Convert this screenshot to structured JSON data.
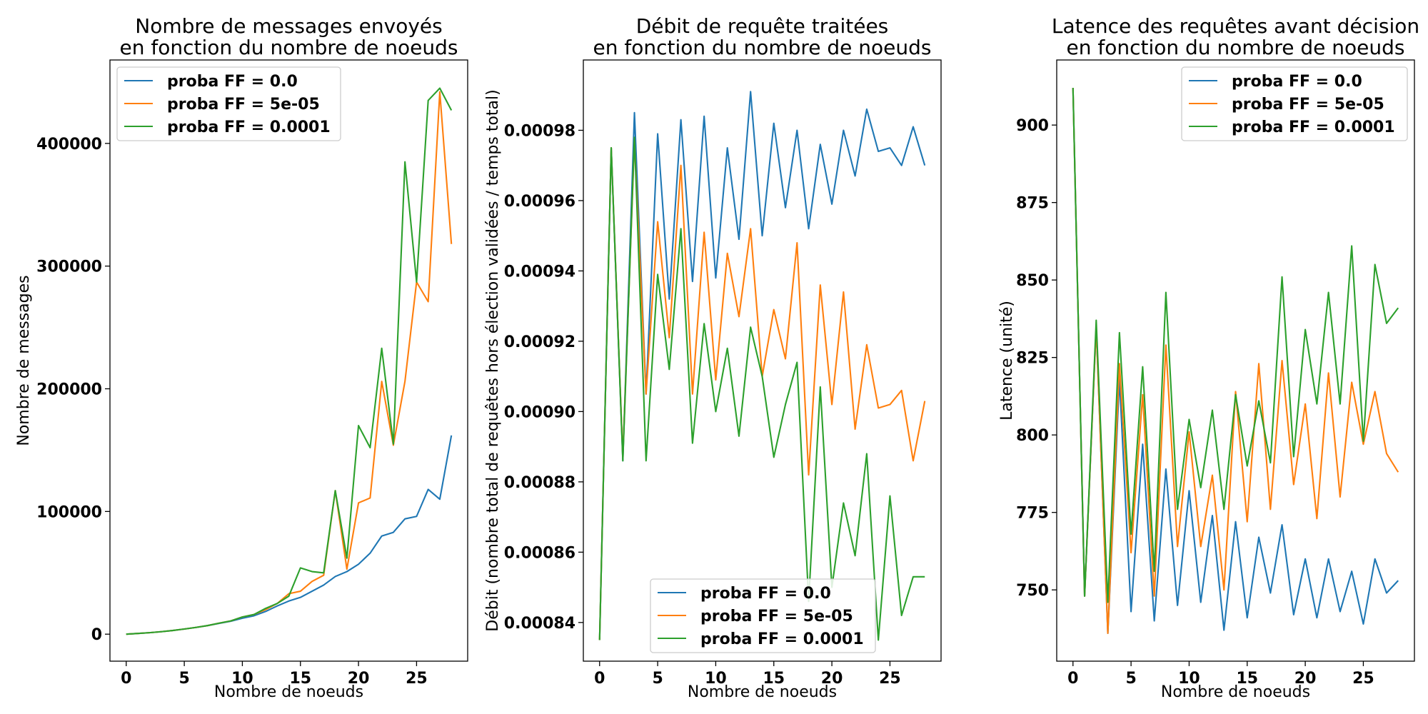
{
  "colors": {
    "blue": "#1f77b4",
    "orange": "#ff7f0e",
    "green": "#2ca02c",
    "frame": "#000000",
    "legend_border": "#cccccc"
  },
  "chart_data": [
    {
      "type": "line",
      "title_line1": "Nombre de messages envoyés",
      "title_line2": "en fonction du nombre de noeuds",
      "xlabel": "Nombre de noeuds",
      "ylabel": "Nombre de messages",
      "xlim": [
        -1.4,
        29.4
      ],
      "ylim": [
        -22000,
        468000
      ],
      "xticks": [
        0,
        5,
        10,
        15,
        20,
        25
      ],
      "yticks": [
        0,
        100000,
        200000,
        300000,
        400000
      ],
      "ytick_labels": [
        "0",
        "100000",
        "200000",
        "300000",
        "400000"
      ],
      "grid": false,
      "legend_position": "top-left",
      "x": [
        0,
        1,
        2,
        3,
        4,
        5,
        6,
        7,
        8,
        9,
        10,
        11,
        12,
        13,
        14,
        15,
        16,
        17,
        18,
        19,
        20,
        21,
        22,
        23,
        24,
        25,
        26,
        27,
        28
      ],
      "series": [
        {
          "name": "proba FF = 0.0",
          "color": "#1f77b4",
          "values": [
            0,
            600,
            1200,
            2000,
            3000,
            4200,
            5500,
            7000,
            8800,
            10500,
            13000,
            15000,
            18500,
            23000,
            27000,
            30000,
            35000,
            40000,
            47000,
            51000,
            57000,
            66000,
            80000,
            83000,
            94000,
            96000,
            118000,
            110000,
            162000
          ]
        },
        {
          "name": "proba FF = 5e-05",
          "color": "#ff7f0e",
          "values": [
            0,
            600,
            1200,
            2000,
            3000,
            4200,
            5500,
            7000,
            9000,
            10800,
            14000,
            16000,
            20000,
            25000,
            33000,
            35000,
            43000,
            48000,
            117000,
            53000,
            107000,
            111000,
            206000,
            154000,
            206000,
            287000,
            271000,
            442000,
            318000
          ]
        },
        {
          "name": "proba FF = 0.0001",
          "color": "#2ca02c",
          "values": [
            0,
            600,
            1200,
            2000,
            3000,
            4200,
            5500,
            7000,
            9000,
            10800,
            14000,
            16000,
            21000,
            25000,
            31000,
            54000,
            51000,
            50000,
            117000,
            62000,
            170000,
            152000,
            233000,
            155000,
            385000,
            287000,
            435000,
            445000,
            427000
          ]
        }
      ]
    },
    {
      "type": "line",
      "title_line1": "Débit de requête traitées",
      "title_line2": "en fonction du nombre de noeuds",
      "xlabel": "Nombre de noeuds",
      "ylabel": "Débit (nombre total de requêtes hors élection validées / temps total)",
      "xlim": [
        -1.4,
        29.4
      ],
      "ylim": [
        0.000829,
        0.001
      ],
      "xticks": [
        0,
        5,
        10,
        15,
        20,
        25
      ],
      "yticks": [
        0.00084,
        0.00086,
        0.00088,
        0.0009,
        0.00092,
        0.00094,
        0.00096,
        0.00098
      ],
      "ytick_labels": [
        "0.00084",
        "0.00086",
        "0.00088",
        "0.00090",
        "0.00092",
        "0.00094",
        "0.00096",
        "0.00098"
      ],
      "grid": false,
      "legend_position": "bottom-center",
      "x": [
        0,
        1,
        2,
        3,
        4,
        5,
        6,
        7,
        8,
        9,
        10,
        11,
        12,
        13,
        14,
        15,
        16,
        17,
        18,
        19,
        20,
        21,
        22,
        23,
        24,
        25,
        26,
        27,
        28
      ],
      "series": [
        {
          "name": "proba FF = 0.0",
          "color": "#1f77b4",
          "values": [
            0.000835,
            0.000975,
            0.000886,
            0.000985,
            0.000905,
            0.000979,
            0.000932,
            0.000983,
            0.000937,
            0.000984,
            0.000938,
            0.000975,
            0.000949,
            0.000991,
            0.00095,
            0.000982,
            0.000958,
            0.00098,
            0.000952,
            0.000976,
            0.000959,
            0.00098,
            0.000967,
            0.000986,
            0.000974,
            0.000975,
            0.00097,
            0.000981,
            0.00097
          ]
        },
        {
          "name": "proba FF = 5e-05",
          "color": "#ff7f0e",
          "values": [
            0.000835,
            0.000975,
            0.000887,
            0.000977,
            0.000905,
            0.000954,
            0.000921,
            0.00097,
            0.000905,
            0.000951,
            0.000909,
            0.000945,
            0.000927,
            0.000952,
            0.00091,
            0.000929,
            0.000915,
            0.000948,
            0.000882,
            0.000936,
            0.000902,
            0.000934,
            0.000895,
            0.000919,
            0.000901,
            0.000902,
            0.000906,
            0.000886,
            0.000903
          ]
        },
        {
          "name": "proba FF = 0.0001",
          "color": "#2ca02c",
          "values": [
            0.000835,
            0.000975,
            0.000886,
            0.000978,
            0.000886,
            0.000939,
            0.000912,
            0.000952,
            0.000891,
            0.000925,
            0.0009,
            0.000918,
            0.000893,
            0.000924,
            0.00091,
            0.000887,
            0.000902,
            0.000914,
            0.000846,
            0.000907,
            0.00085,
            0.000874,
            0.000859,
            0.000888,
            0.000835,
            0.000876,
            0.000842,
            0.000853,
            0.000853
          ]
        }
      ]
    },
    {
      "type": "line",
      "title_line1": "Latence des requêtes avant décision",
      "title_line2": "en fonction du nombre de noeuds",
      "xlabel": "Nombre de noeuds",
      "ylabel": "Latence (unité)",
      "xlim": [
        -1.4,
        29.4
      ],
      "ylim": [
        727,
        921
      ],
      "xticks": [
        0,
        5,
        10,
        15,
        20,
        25
      ],
      "yticks": [
        750,
        775,
        800,
        825,
        850,
        875,
        900
      ],
      "ytick_labels": [
        "750",
        "775",
        "800",
        "825",
        "850",
        "875",
        "900"
      ],
      "grid": false,
      "legend_position": "top-right",
      "x": [
        0,
        1,
        2,
        3,
        4,
        5,
        6,
        7,
        8,
        9,
        10,
        11,
        12,
        13,
        14,
        15,
        16,
        17,
        18,
        19,
        20,
        21,
        22,
        23,
        24,
        25,
        26,
        27,
        28
      ],
      "series": [
        {
          "name": "proba FF = 0.0",
          "color": "#1f77b4",
          "values": [
            912,
            748,
            835,
            736,
            818,
            743,
            797,
            740,
            789,
            745,
            782,
            746,
            774,
            737,
            772,
            741,
            767,
            749,
            771,
            742,
            760,
            741,
            760,
            743,
            756,
            739,
            760,
            749,
            753
          ]
        },
        {
          "name": "proba FF = 5e-05",
          "color": "#ff7f0e",
          "values": [
            912,
            748,
            835,
            736,
            823,
            762,
            813,
            748,
            829,
            764,
            801,
            764,
            787,
            750,
            814,
            772,
            823,
            776,
            824,
            784,
            810,
            773,
            820,
            780,
            817,
            797,
            814,
            794,
            788
          ]
        },
        {
          "name": "proba FF = 0.0001",
          "color": "#2ca02c",
          "values": [
            912,
            748,
            837,
            746,
            833,
            768,
            822,
            756,
            846,
            776,
            805,
            783,
            808,
            776,
            813,
            790,
            811,
            791,
            851,
            793,
            834,
            810,
            846,
            810,
            861,
            798,
            855,
            836,
            841
          ]
        }
      ]
    }
  ]
}
